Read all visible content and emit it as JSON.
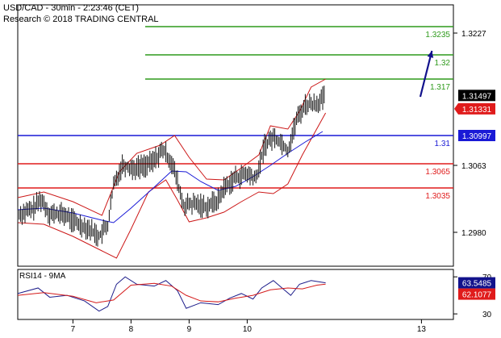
{
  "header": {
    "line1": "USD/CAD - 30min - 2:23:46 (CET)",
    "line2": "Research © 2018 TRADING CENTRAL"
  },
  "chart_data": [
    {
      "type": "candlestick",
      "title": "USD/CAD - 30min",
      "ylim": [
        1.2938,
        1.3262
      ],
      "y_ticks": [
        "1.3227",
        "1.3063",
        "1.2980"
      ],
      "y_tick_values": [
        1.3227,
        1.3063,
        1.298
      ],
      "x_ticks": [
        "7",
        "8",
        "9",
        "10",
        "13"
      ],
      "x_tick_values": [
        7,
        8,
        9,
        10,
        13
      ],
      "xlim": [
        6.05,
        13.55
      ],
      "last_price": "1.31497",
      "last_price_value": 1.31497,
      "levels": [
        {
          "label": "1.3235",
          "value": 1.3235,
          "color": "#2e9a1c",
          "kind": "resistance"
        },
        {
          "label": "1.32",
          "value": 1.32,
          "color": "#2e9a1c",
          "kind": "resistance"
        },
        {
          "label": "1.317",
          "value": 1.317,
          "color": "#2e9a1c",
          "kind": "resistance"
        },
        {
          "label": "1.31",
          "value": 1.31,
          "color": "#1a1ad6",
          "kind": "pivot",
          "tag": "1.30997",
          "tag_value": 1.30997
        },
        {
          "label": "1.3065",
          "value": 1.3065,
          "color": "#e01b1b",
          "kind": "support"
        },
        {
          "label": "1.3035",
          "value": 1.3035,
          "color": "#e01b1b",
          "kind": "support"
        }
      ],
      "red_tag": {
        "label": "1.31331",
        "value": 1.31331
      },
      "forecast_arrow": {
        "from": [
          12.98,
          1.3148
        ],
        "to": [
          13.18,
          1.3205
        ]
      },
      "price_path": [
        [
          6.05,
          1.3002
        ],
        [
          6.3,
          1.3008
        ],
        [
          6.45,
          1.3021
        ],
        [
          6.6,
          1.3003
        ],
        [
          6.85,
          1.3002
        ],
        [
          7.05,
          1.2992
        ],
        [
          7.25,
          1.2986
        ],
        [
          7.45,
          1.2975
        ],
        [
          7.6,
          1.2989
        ],
        [
          7.7,
          1.3038
        ],
        [
          7.85,
          1.3064
        ],
        [
          8.05,
          1.3059
        ],
        [
          8.35,
          1.3066
        ],
        [
          8.55,
          1.3082
        ],
        [
          8.7,
          1.3067
        ],
        [
          8.8,
          1.3042
        ],
        [
          8.9,
          1.3013
        ],
        [
          9.1,
          1.3015
        ],
        [
          9.3,
          1.3012
        ],
        [
          9.5,
          1.302
        ],
        [
          9.6,
          1.3035
        ],
        [
          9.8,
          1.3048
        ],
        [
          10.0,
          1.3052
        ],
        [
          10.15,
          1.3046
        ],
        [
          10.3,
          1.3088
        ],
        [
          10.45,
          1.3098
        ],
        [
          10.6,
          1.3091
        ],
        [
          10.7,
          1.3081
        ],
        [
          10.85,
          1.312
        ],
        [
          11.0,
          1.3138
        ],
        [
          11.2,
          1.314
        ],
        [
          11.35,
          1.3148
        ]
      ],
      "ma_path": [
        [
          6.05,
          1.3008
        ],
        [
          6.5,
          1.301
        ],
        [
          7.0,
          1.3004
        ],
        [
          7.5,
          1.2995
        ],
        [
          7.7,
          1.2992
        ],
        [
          8.0,
          1.301
        ],
        [
          8.4,
          1.3036
        ],
        [
          8.7,
          1.3056
        ],
        [
          8.95,
          1.3055
        ],
        [
          9.2,
          1.3043
        ],
        [
          9.5,
          1.3032
        ],
        [
          9.8,
          1.3037
        ],
        [
          10.1,
          1.3049
        ],
        [
          10.4,
          1.3063
        ],
        [
          10.7,
          1.3078
        ],
        [
          11.0,
          1.3092
        ],
        [
          11.3,
          1.3105
        ]
      ],
      "bb_upper": [
        [
          6.05,
          1.3023
        ],
        [
          6.5,
          1.303
        ],
        [
          7.0,
          1.3018
        ],
        [
          7.5,
          1.3001
        ],
        [
          7.8,
          1.3055
        ],
        [
          8.1,
          1.3078
        ],
        [
          8.5,
          1.3088
        ],
        [
          8.75,
          1.31
        ],
        [
          9.0,
          1.3073
        ],
        [
          9.3,
          1.3046
        ],
        [
          9.6,
          1.3045
        ],
        [
          9.9,
          1.306
        ],
        [
          10.2,
          1.3076
        ],
        [
          10.4,
          1.3112
        ],
        [
          10.7,
          1.3108
        ],
        [
          10.9,
          1.313
        ],
        [
          11.1,
          1.316
        ],
        [
          11.35,
          1.317
        ]
      ],
      "bb_lower": [
        [
          6.05,
          1.2992
        ],
        [
          6.5,
          1.299
        ],
        [
          7.0,
          1.2975
        ],
        [
          7.5,
          1.2957
        ],
        [
          7.75,
          1.2948
        ],
        [
          8.0,
          1.2984
        ],
        [
          8.3,
          1.303
        ],
        [
          8.6,
          1.3045
        ],
        [
          8.8,
          1.302
        ],
        [
          9.0,
          1.2993
        ],
        [
          9.3,
          1.2998
        ],
        [
          9.6,
          1.3005
        ],
        [
          9.9,
          1.3018
        ],
        [
          10.2,
          1.303
        ],
        [
          10.45,
          1.3028
        ],
        [
          10.7,
          1.304
        ],
        [
          10.95,
          1.3076
        ],
        [
          11.35,
          1.3128
        ]
      ]
    },
    {
      "type": "line",
      "title": "RSI14 - 9MA",
      "ylim": [
        24,
        78
      ],
      "y_ticks": [
        "70",
        "30"
      ],
      "y_tick_values": [
        70,
        30
      ],
      "rsi_value_label": "63.5485",
      "rsi_value": 63.5485,
      "ma_value_label": "62.1077",
      "ma_value": 62.1077,
      "series": [
        {
          "name": "RSI14",
          "color": "#1c1c8a",
          "points": [
            [
              6.05,
              52
            ],
            [
              6.4,
              58
            ],
            [
              6.6,
              48
            ],
            [
              6.9,
              50
            ],
            [
              7.2,
              44
            ],
            [
              7.45,
              33
            ],
            [
              7.6,
              38
            ],
            [
              7.75,
              62
            ],
            [
              7.9,
              70
            ],
            [
              8.1,
              62
            ],
            [
              8.4,
              60
            ],
            [
              8.6,
              66
            ],
            [
              8.8,
              55
            ],
            [
              8.95,
              36
            ],
            [
              9.2,
              42
            ],
            [
              9.5,
              40
            ],
            [
              9.7,
              47
            ],
            [
              9.9,
              52
            ],
            [
              10.1,
              46
            ],
            [
              10.25,
              58
            ],
            [
              10.45,
              66
            ],
            [
              10.6,
              58
            ],
            [
              10.75,
              50
            ],
            [
              10.9,
              62
            ],
            [
              11.1,
              66
            ],
            [
              11.35,
              63.5
            ]
          ]
        },
        {
          "name": "9MA",
          "color": "#d41a1a",
          "points": [
            [
              6.05,
              50
            ],
            [
              6.5,
              53
            ],
            [
              7.0,
              49
            ],
            [
              7.4,
              42
            ],
            [
              7.7,
              45
            ],
            [
              8.0,
              61
            ],
            [
              8.4,
              63
            ],
            [
              8.7,
              60
            ],
            [
              8.95,
              50
            ],
            [
              9.2,
              44
            ],
            [
              9.5,
              43
            ],
            [
              9.8,
              47
            ],
            [
              10.1,
              50
            ],
            [
              10.4,
              56
            ],
            [
              10.7,
              58
            ],
            [
              10.95,
              57
            ],
            [
              11.2,
              61
            ],
            [
              11.35,
              62.1
            ]
          ]
        }
      ]
    }
  ]
}
